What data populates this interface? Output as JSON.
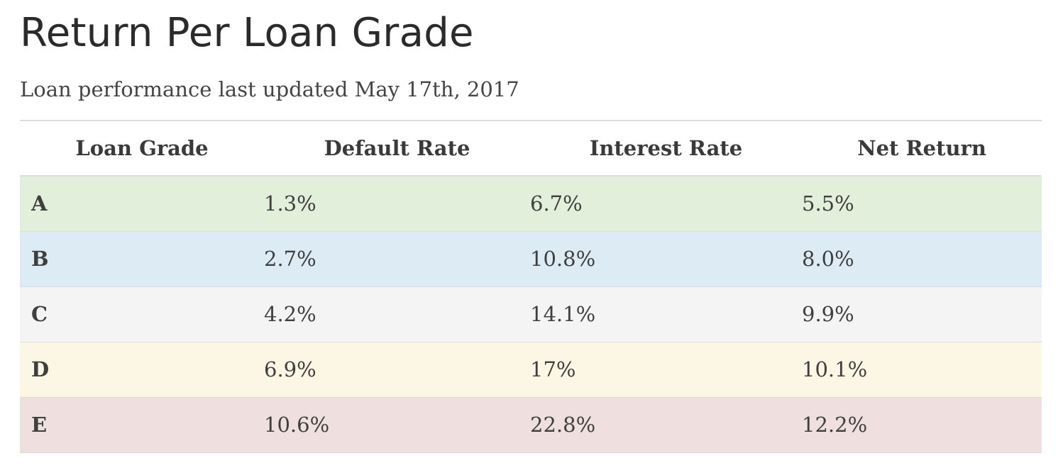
{
  "page": {
    "title": "Return Per Loan Grade",
    "subtitle": "Loan performance last updated May 17th, 2017"
  },
  "table": {
    "columns": [
      "Loan Grade",
      "Default Rate",
      "Interest Rate",
      "Net Return"
    ],
    "rows": [
      {
        "grade": "A",
        "default_rate": "1.3%",
        "interest_rate": "6.7%",
        "net_return": "5.5%",
        "color": "#e2efda"
      },
      {
        "grade": "B",
        "default_rate": "2.7%",
        "interest_rate": "10.8%",
        "net_return": "8.0%",
        "color": "#dcebf4"
      },
      {
        "grade": "C",
        "default_rate": "4.2%",
        "interest_rate": "14.1%",
        "net_return": "9.9%",
        "color": "#f4f4f4"
      },
      {
        "grade": "D",
        "default_rate": "6.9%",
        "interest_rate": "17%",
        "net_return": "10.1%",
        "color": "#fcf7e5"
      },
      {
        "grade": "E",
        "default_rate": "10.6%",
        "interest_rate": "22.8%",
        "net_return": "12.2%",
        "color": "#efdfdf"
      }
    ]
  }
}
